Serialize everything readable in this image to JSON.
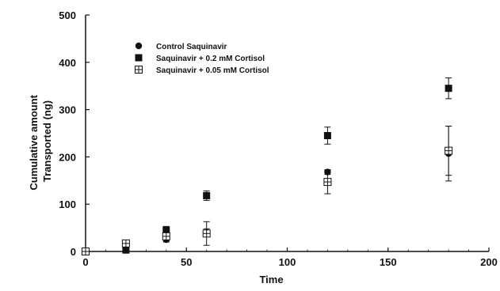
{
  "chart_data": {
    "type": "scatter",
    "title": "",
    "xlabel": "Time",
    "ylabel_lines": [
      "Cumulative amount",
      "Transported (ng)"
    ],
    "xlim": [
      0,
      200
    ],
    "ylim": [
      0,
      500
    ],
    "xticks": [
      0,
      50,
      100,
      150,
      200
    ],
    "yticks": [
      0,
      100,
      200,
      300,
      400,
      500
    ],
    "grid": false,
    "legend_position": "top-left",
    "series": [
      {
        "name": "Control Saquinavir",
        "marker": "circle",
        "points": [
          {
            "x": 0,
            "y": 0,
            "err": 0
          },
          {
            "x": 20,
            "y": 12,
            "err": 0
          },
          {
            "x": 40,
            "y": 25,
            "err": 5
          },
          {
            "x": 60,
            "y": 40,
            "err": 8
          },
          {
            "x": 120,
            "y": 168,
            "err": 5
          },
          {
            "x": 180,
            "y": 207,
            "err": 58
          }
        ]
      },
      {
        "name": "Saquinavir + 0.2 mM Cortisol",
        "marker": "square",
        "points": [
          {
            "x": 0,
            "y": 0,
            "err": 0
          },
          {
            "x": 20,
            "y": 3,
            "err": 0
          },
          {
            "x": 40,
            "y": 45,
            "err": 8
          },
          {
            "x": 60,
            "y": 118,
            "err": 10
          },
          {
            "x": 120,
            "y": 245,
            "err": 18
          },
          {
            "x": 180,
            "y": 345,
            "err": 22
          }
        ]
      },
      {
        "name": "Saquinavir + 0.05 mM Cortisol",
        "marker": "crossed-square",
        "points": [
          {
            "x": 0,
            "y": 0,
            "err": 0
          },
          {
            "x": 20,
            "y": 17,
            "err": 3
          },
          {
            "x": 40,
            "y": 32,
            "err": 10
          },
          {
            "x": 60,
            "y": 38,
            "err": 25
          },
          {
            "x": 120,
            "y": 147,
            "err": 25
          },
          {
            "x": 180,
            "y": 213,
            "err": 52
          }
        ]
      }
    ]
  }
}
